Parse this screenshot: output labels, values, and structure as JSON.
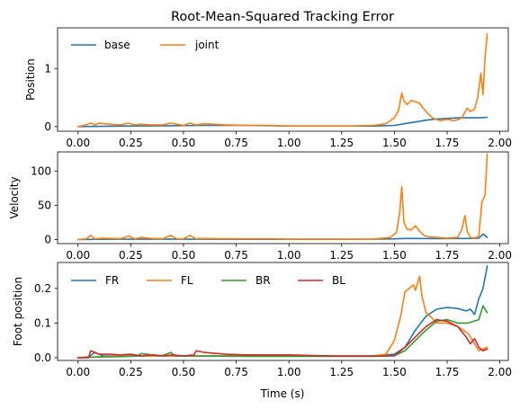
{
  "chart_data": [
    {
      "type": "line",
      "title": "Root-Mean-Squared Tracking Error",
      "xlabel": "",
      "ylabel": "Position",
      "xlim": [
        -0.097,
        2.04
      ],
      "ylim": [
        -0.08,
        1.7
      ],
      "xticks": [
        0.0,
        0.25,
        0.5,
        0.75,
        1.0,
        1.25,
        1.5,
        1.75,
        2.0
      ],
      "xtick_labels": [
        "0.00",
        "0.25",
        "0.50",
        "0.75",
        "1.00",
        "1.25",
        "1.50",
        "1.75",
        "2.00"
      ],
      "yticks": [
        0,
        1
      ],
      "ytick_labels": [
        "0",
        "1"
      ],
      "legend": {
        "placement": "upper-left",
        "columns": 2
      },
      "series": [
        {
          "name": "base",
          "color": "#1f77b4",
          "x": [
            0.0,
            0.2,
            0.4,
            0.6,
            0.8,
            1.0,
            1.2,
            1.4,
            1.5,
            1.55,
            1.6,
            1.65,
            1.7,
            1.75,
            1.8,
            1.85,
            1.9,
            1.94
          ],
          "y": [
            0.0,
            0.01,
            0.015,
            0.02,
            0.02,
            0.01,
            0.01,
            0.01,
            0.02,
            0.05,
            0.08,
            0.11,
            0.13,
            0.14,
            0.15,
            0.15,
            0.15,
            0.16
          ]
        },
        {
          "name": "joint",
          "color": "#ff7f0e",
          "x": [
            0.0,
            0.03,
            0.06,
            0.08,
            0.1,
            0.15,
            0.2,
            0.24,
            0.27,
            0.3,
            0.35,
            0.4,
            0.44,
            0.47,
            0.5,
            0.53,
            0.56,
            0.6,
            0.7,
            0.8,
            0.9,
            1.0,
            1.1,
            1.2,
            1.3,
            1.4,
            1.46,
            1.5,
            1.52,
            1.535,
            1.545,
            1.56,
            1.58,
            1.6,
            1.62,
            1.64,
            1.66,
            1.68,
            1.7,
            1.72,
            1.74,
            1.76,
            1.78,
            1.8,
            1.82,
            1.835,
            1.845,
            1.86,
            1.88,
            1.895,
            1.91,
            1.92,
            1.93,
            1.94
          ],
          "y": [
            0.0,
            0.02,
            0.06,
            0.03,
            0.06,
            0.04,
            0.03,
            0.06,
            0.03,
            0.04,
            0.03,
            0.03,
            0.06,
            0.04,
            0.02,
            0.06,
            0.03,
            0.05,
            0.03,
            0.02,
            0.02,
            0.01,
            0.01,
            0.01,
            0.01,
            0.02,
            0.05,
            0.15,
            0.28,
            0.58,
            0.44,
            0.38,
            0.45,
            0.43,
            0.4,
            0.3,
            0.22,
            0.15,
            0.12,
            0.1,
            0.12,
            0.12,
            0.1,
            0.12,
            0.15,
            0.25,
            0.32,
            0.26,
            0.3,
            0.5,
            0.92,
            0.55,
            1.2,
            1.6
          ]
        }
      ]
    },
    {
      "type": "line",
      "title": "",
      "xlabel": "",
      "ylabel": "Velocity",
      "xlim": [
        -0.097,
        2.04
      ],
      "ylim": [
        -6,
        128
      ],
      "xticks": [
        0.0,
        0.25,
        0.5,
        0.75,
        1.0,
        1.25,
        1.5,
        1.75,
        2.0
      ],
      "xtick_labels": [
        "0.00",
        "0.25",
        "0.50",
        "0.75",
        "1.00",
        "1.25",
        "1.50",
        "1.75",
        "2.00"
      ],
      "yticks": [
        0,
        50,
        100
      ],
      "ytick_labels": [
        "0",
        "50",
        "100"
      ],
      "series": [
        {
          "name": "",
          "color": "#1f77b4",
          "x": [
            0.0,
            0.2,
            0.4,
            0.6,
            0.8,
            1.0,
            1.2,
            1.4,
            1.5,
            1.55,
            1.6,
            1.7,
            1.8,
            1.85,
            1.9,
            1.92,
            1.94
          ],
          "y": [
            0.0,
            0.5,
            0.5,
            0.5,
            0.3,
            0.3,
            0.3,
            0.5,
            1.0,
            1.5,
            1.5,
            1.2,
            1.5,
            1.5,
            2.0,
            8.0,
            3.0
          ]
        },
        {
          "name": "",
          "color": "#ff7f0e",
          "x": [
            0.0,
            0.04,
            0.06,
            0.08,
            0.12,
            0.2,
            0.24,
            0.27,
            0.3,
            0.35,
            0.4,
            0.44,
            0.47,
            0.5,
            0.53,
            0.56,
            0.6,
            0.7,
            0.8,
            0.9,
            1.0,
            1.1,
            1.2,
            1.3,
            1.4,
            1.48,
            1.51,
            1.525,
            1.535,
            1.545,
            1.56,
            1.58,
            1.6,
            1.62,
            1.64,
            1.66,
            1.7,
            1.75,
            1.8,
            1.82,
            1.835,
            1.845,
            1.86,
            1.88,
            1.9,
            1.915,
            1.93,
            1.94
          ],
          "y": [
            0.0,
            1.0,
            6.0,
            1.0,
            2.0,
            1.0,
            5.0,
            1.0,
            3.0,
            1.5,
            1.0,
            6.0,
            1.0,
            1.0,
            6.0,
            1.0,
            1.5,
            1.0,
            1.0,
            1.0,
            0.5,
            0.5,
            0.5,
            0.5,
            0.5,
            3.0,
            10.0,
            40.0,
            77.0,
            25.0,
            15.0,
            14.0,
            20.0,
            12.0,
            6.0,
            4.0,
            3.0,
            2.0,
            3.0,
            15.0,
            35.0,
            12.0,
            3.0,
            2.0,
            5.0,
            55.0,
            65.0,
            125.0
          ]
        }
      ]
    },
    {
      "type": "line",
      "title": "",
      "xlabel": "Time (s)",
      "ylabel": "Foot position",
      "xlim": [
        -0.097,
        2.04
      ],
      "ylim": [
        -0.008,
        0.275
      ],
      "xticks": [
        0.0,
        0.25,
        0.5,
        0.75,
        1.0,
        1.25,
        1.5,
        1.75,
        2.0
      ],
      "xtick_labels": [
        "0.00",
        "0.25",
        "0.50",
        "0.75",
        "1.00",
        "1.25",
        "1.50",
        "1.75",
        "2.00"
      ],
      "yticks": [
        0.0,
        0.1,
        0.2
      ],
      "ytick_labels": [
        "0.0",
        "0.1",
        "0.2"
      ],
      "legend": {
        "placement": "upper-left",
        "columns": 4
      },
      "series": [
        {
          "name": "FR",
          "color": "#1f77b4",
          "x": [
            0.0,
            0.05,
            0.08,
            0.12,
            0.2,
            0.4,
            0.6,
            0.8,
            1.0,
            1.2,
            1.4,
            1.5,
            1.55,
            1.6,
            1.65,
            1.7,
            1.75,
            1.8,
            1.84,
            1.86,
            1.88,
            1.9,
            1.92,
            1.94
          ],
          "y": [
            0.0,
            0.002,
            0.015,
            0.005,
            0.005,
            0.005,
            0.005,
            0.005,
            0.005,
            0.005,
            0.005,
            0.01,
            0.03,
            0.08,
            0.12,
            0.14,
            0.145,
            0.142,
            0.135,
            0.14,
            0.125,
            0.17,
            0.2,
            0.265
          ]
        },
        {
          "name": "FL",
          "color": "#ff7f0e",
          "x": [
            0.0,
            0.2,
            0.4,
            0.6,
            0.8,
            1.0,
            1.2,
            1.4,
            1.46,
            1.5,
            1.53,
            1.55,
            1.57,
            1.59,
            1.6,
            1.62,
            1.63,
            1.65,
            1.67,
            1.7,
            1.75,
            1.8,
            1.85,
            1.9,
            1.94
          ],
          "y": [
            0.0,
            0.005,
            0.005,
            0.005,
            0.005,
            0.005,
            0.005,
            0.005,
            0.01,
            0.05,
            0.12,
            0.19,
            0.2,
            0.21,
            0.195,
            0.235,
            0.18,
            0.13,
            0.12,
            0.1,
            0.1,
            0.09,
            0.07,
            0.02,
            0.03
          ]
        },
        {
          "name": "BR",
          "color": "#2ca02c",
          "x": [
            0.0,
            0.1,
            0.2,
            0.28,
            0.3,
            0.35,
            0.4,
            0.44,
            0.46,
            0.5,
            0.6,
            0.8,
            1.0,
            1.2,
            1.4,
            1.5,
            1.55,
            1.6,
            1.65,
            1.7,
            1.75,
            1.8,
            1.85,
            1.9,
            1.92,
            1.94
          ],
          "y": [
            0.0,
            0.002,
            0.003,
            0.005,
            0.012,
            0.008,
            0.006,
            0.015,
            0.005,
            0.005,
            0.005,
            0.004,
            0.004,
            0.004,
            0.004,
            0.006,
            0.02,
            0.05,
            0.08,
            0.105,
            0.11,
            0.1,
            0.1,
            0.11,
            0.15,
            0.13
          ]
        },
        {
          "name": "BL",
          "color": "#d62728",
          "x": [
            0.0,
            0.05,
            0.06,
            0.08,
            0.1,
            0.15,
            0.2,
            0.25,
            0.3,
            0.35,
            0.4,
            0.45,
            0.5,
            0.55,
            0.56,
            0.6,
            0.7,
            0.8,
            1.0,
            1.2,
            1.4,
            1.5,
            1.55,
            1.6,
            1.65,
            1.7,
            1.75,
            1.8,
            1.84,
            1.86,
            1.88,
            1.9,
            1.92,
            1.94
          ],
          "y": [
            0.0,
            0.0,
            0.02,
            0.015,
            0.01,
            0.01,
            0.008,
            0.01,
            0.005,
            0.008,
            0.005,
            0.008,
            0.005,
            0.008,
            0.02,
            0.015,
            0.01,
            0.008,
            0.008,
            0.005,
            0.005,
            0.005,
            0.03,
            0.06,
            0.09,
            0.11,
            0.105,
            0.09,
            0.06,
            0.04,
            0.055,
            0.03,
            0.02,
            0.025
          ]
        }
      ]
    }
  ]
}
